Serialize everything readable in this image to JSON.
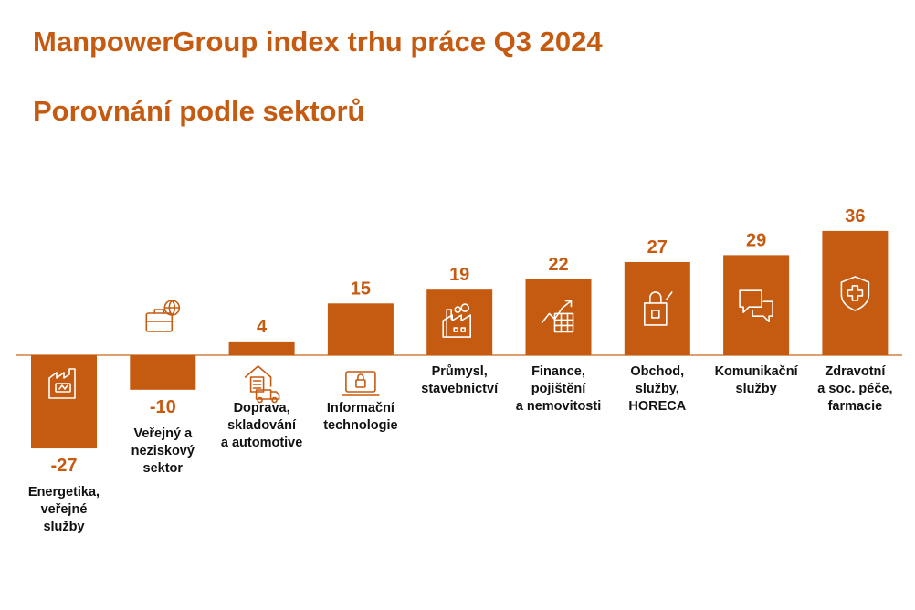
{
  "title": "ManpowerGroup index trhu práce Q3 2024",
  "subtitle": "Porovnání podle sektorů",
  "colors": {
    "accent": "#C55A11",
    "bar": "#C55A11",
    "axis": "#D08040",
    "label": "#111111"
  },
  "chart_data": {
    "type": "bar",
    "title": "ManpowerGroup index trhu práce Q3 2024",
    "subtitle": "Porovnání podle sektorů",
    "categories": [
      [
        "Energetika,",
        "veřejné",
        "služby"
      ],
      [
        "Veřejný a",
        "neziskový",
        "sektor"
      ],
      [
        "Doprava,",
        "skladování",
        "a automotive"
      ],
      [
        "Informační",
        "technologie"
      ],
      [
        "Průmysl,",
        "stavebnictví"
      ],
      [
        "Finance,",
        "pojištění",
        "a nemovitosti"
      ],
      [
        "Obchod,",
        "služby,",
        "HORECA"
      ],
      [
        "Komunikační",
        "služby"
      ],
      [
        "Zdravotní",
        "a soc. péče,",
        "farmacie"
      ]
    ],
    "values": [
      -27,
      -10,
      4,
      15,
      19,
      22,
      27,
      29,
      36
    ],
    "icons": [
      "factory-battery-icon",
      "briefcase-globe-icon",
      "warehouse-truck-icon",
      "laptop-lock-icon",
      "factory-icon",
      "chart-table-icon",
      "shopping-bag-icon",
      "chat-bubbles-icon",
      "medical-shield-icon"
    ],
    "xlabel": "",
    "ylabel": "",
    "grid": false,
    "legend": "none"
  }
}
